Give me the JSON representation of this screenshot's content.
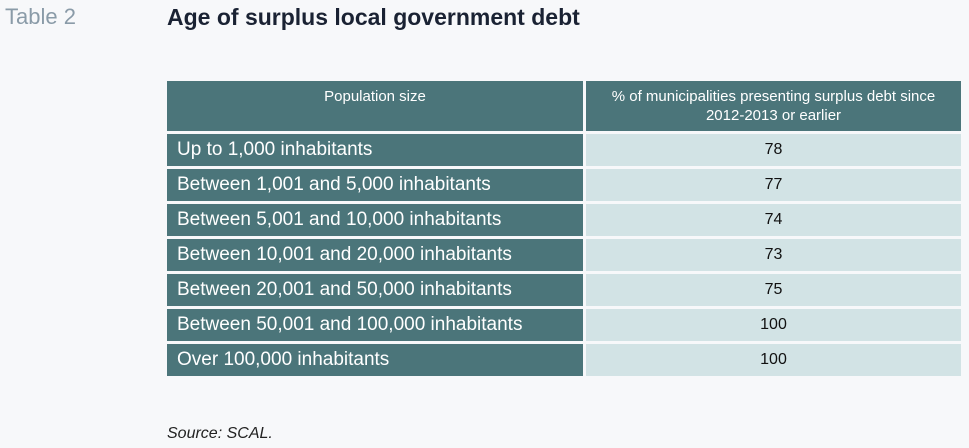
{
  "table_number": "Table 2",
  "title": "Age of surplus local government debt",
  "columns": [
    "Population size",
    "% of municipalities presenting surplus debt since 2012-2013 or earlier"
  ],
  "rows": [
    {
      "label": "Up to 1,000 inhabitants",
      "value": "78"
    },
    {
      "label": "Between 1,001 and 5,000 inhabitants",
      "value": "77"
    },
    {
      "label": "Between 5,001 and 10,000 inhabitants",
      "value": "74"
    },
    {
      "label": "Between 10,001 and 20,000 inhabitants",
      "value": "73"
    },
    {
      "label": "Between 20,001 and 50,000 inhabitants",
      "value": "75"
    },
    {
      "label": "Between 50,001 and 100,000 inhabitants",
      "value": "100"
    },
    {
      "label": "Over 100,000 inhabitants",
      "value": "100"
    }
  ],
  "source": "Source: SCAL.",
  "colors": {
    "header_bg": "#4b757a",
    "value_bg": "#d2e3e5",
    "page_bg": "#f7f8fa",
    "title_color": "#1a2233",
    "table_number_color": "#8a9ba8"
  }
}
